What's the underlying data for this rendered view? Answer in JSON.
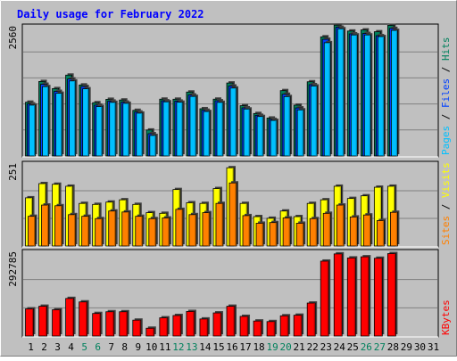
{
  "title": "Daily usage for February 2022",
  "colors": {
    "background": "#c0c0c0",
    "title": "#0000ff",
    "hits": "#00805c",
    "files": "#0040ff",
    "pages": "#00c0ff",
    "visits": "#ffff00",
    "sites": "#ff8000",
    "kbytes": "#ff0000",
    "weekend": "#00805c",
    "weekday": "#000000"
  },
  "chart_data": [
    {
      "type": "bar",
      "panel": "hits-files-pages",
      "categories": [
        "1",
        "2",
        "3",
        "4",
        "5",
        "6",
        "7",
        "8",
        "9",
        "10",
        "11",
        "12",
        "13",
        "14",
        "15",
        "16",
        "17",
        "18",
        "19",
        "20",
        "21",
        "22",
        "23",
        "24",
        "25",
        "26",
        "27",
        "28",
        "29",
        "30",
        "31"
      ],
      "y_label_text": "2560",
      "y_label_value": 2560,
      "ylim": [
        0,
        2560
      ],
      "side_labels": [
        "Pages",
        "Files",
        "Hits"
      ],
      "side_separator": " / ",
      "series": [
        {
          "key": "hits",
          "values": [
            1058,
            1466,
            1326,
            1591,
            1397,
            1048,
            1115,
            1101,
            898,
            511,
            1118,
            1117,
            1258,
            930,
            1118,
            1436,
            990,
            836,
            746,
            1286,
            1000,
            1460,
            2344,
            2574,
            2458,
            2480,
            2444,
            2570,
            null,
            null,
            null
          ]
        },
        {
          "key": "files",
          "values": [
            1024,
            1411,
            1271,
            1515,
            1367,
            1000,
            1080,
            1059,
            865,
            438,
            1086,
            1080,
            1200,
            900,
            1086,
            1377,
            947,
            800,
            720,
            1214,
            946,
            1403,
            2296,
            2532,
            2402,
            2410,
            2367,
            2509,
            null,
            null,
            null
          ]
        },
        {
          "key": "pages",
          "values": [
            1001,
            1365,
            1234,
            1477,
            1322,
            973,
            1055,
            1036,
            843,
            404,
            1066,
            1058,
            1172,
            875,
            1055,
            1337,
            924,
            777,
            700,
            1169,
            907,
            1377,
            2229,
            2503,
            2381,
            2381,
            2349,
            2471,
            null,
            null,
            null
          ]
        }
      ]
    },
    {
      "type": "bar",
      "panel": "visits-sites",
      "categories": [
        "1",
        "2",
        "3",
        "4",
        "5",
        "6",
        "7",
        "8",
        "9",
        "10",
        "11",
        "12",
        "13",
        "14",
        "15",
        "16",
        "17",
        "18",
        "19",
        "20",
        "21",
        "22",
        "23",
        "24",
        "25",
        "26",
        "27",
        "28",
        "29",
        "30",
        "31"
      ],
      "y_label_text": "251",
      "y_label_value": 251,
      "ylim": [
        0,
        251
      ],
      "side_labels": [
        "Sites",
        "Visits"
      ],
      "side_separator": " / ",
      "series": [
        {
          "key": "visits",
          "values": [
            146,
            189,
            187,
            181,
            129,
            126,
            133,
            140,
            126,
            101,
            99,
            171,
            131,
            129,
            174,
            237,
            129,
            89,
            84,
            106,
            89,
            129,
            140,
            181,
            144,
            152,
            178,
            181,
            null,
            null,
            null
          ]
        },
        {
          "key": "sites",
          "values": [
            90,
            124,
            122,
            95,
            90,
            83,
            106,
            103,
            90,
            83,
            85,
            111,
            95,
            101,
            129,
            191,
            92,
            69,
            71,
            85,
            69,
            83,
            99,
            124,
            88,
            94,
            77,
            102,
            null,
            null,
            null
          ]
        }
      ]
    },
    {
      "type": "bar",
      "panel": "kbytes",
      "categories": [
        "1",
        "2",
        "3",
        "4",
        "5",
        "6",
        "7",
        "8",
        "9",
        "10",
        "11",
        "12",
        "13",
        "14",
        "15",
        "16",
        "17",
        "18",
        "19",
        "20",
        "21",
        "22",
        "23",
        "24",
        "25",
        "26",
        "27",
        "28",
        "29",
        "30",
        "31"
      ],
      "y_label_text": "292785",
      "y_label_value": 292785,
      "ylim": [
        0,
        292785
      ],
      "side_labels": [
        "KBytes"
      ],
      "side_separator": "",
      "series": [
        {
          "key": "kbytes",
          "values": [
            94000,
            103000,
            91000,
            130000,
            118000,
            78000,
            84000,
            84000,
            55000,
            27000,
            63000,
            71000,
            85000,
            59000,
            80000,
            103000,
            68000,
            52000,
            50000,
            70000,
            72000,
            114000,
            259000,
            284000,
            270000,
            274000,
            269000,
            285000,
            null,
            null,
            null
          ]
        }
      ]
    }
  ],
  "x_axis": {
    "labels": [
      "1",
      "2",
      "3",
      "4",
      "5",
      "6",
      "7",
      "8",
      "9",
      "10",
      "11",
      "12",
      "13",
      "14",
      "15",
      "16",
      "17",
      "18",
      "19",
      "20",
      "21",
      "22",
      "23",
      "24",
      "25",
      "26",
      "27",
      "28",
      "29",
      "30",
      "31"
    ],
    "weekend_days": [
      5,
      6,
      12,
      13,
      19,
      20,
      26,
      27
    ]
  }
}
